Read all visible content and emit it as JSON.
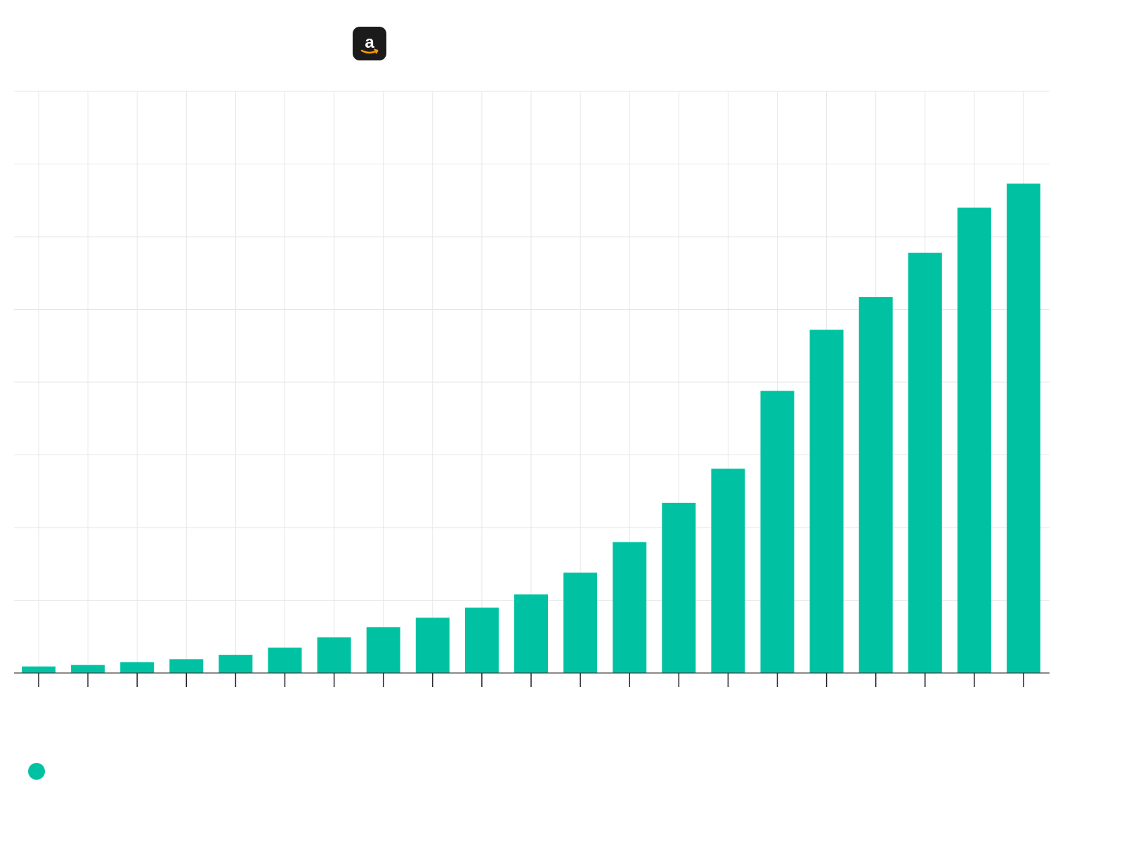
{
  "logo": {
    "icon": "amazon-logo-icon",
    "background": "#1b1b1b",
    "accent": "#ff9900"
  },
  "legend": {
    "color": "#00c2a3"
  },
  "colors": {
    "bar": "#00c2a3",
    "grid": "#e6e6e6",
    "axis": "#444444",
    "background": "#ffffff"
  },
  "chart_data": {
    "type": "bar",
    "categories": [
      "",
      "",
      "",
      "",
      "",
      "",
      "",
      "",
      "",
      "",
      "",
      "",
      "",
      "",
      "",
      "",
      "",
      "",
      "",
      "",
      ""
    ],
    "values": [
      0.9,
      1.1,
      1.5,
      1.9,
      2.5,
      3.5,
      4.9,
      6.3,
      7.6,
      9.0,
      10.8,
      13.8,
      18.0,
      23.4,
      28.1,
      38.8,
      47.2,
      51.7,
      57.8,
      64.0,
      67.3
    ],
    "ylim": [
      0,
      80
    ],
    "grid": true
  }
}
